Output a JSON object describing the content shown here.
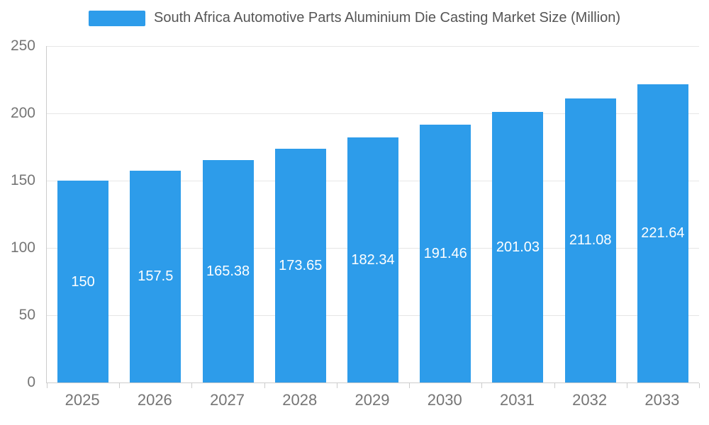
{
  "chart_data": {
    "type": "bar",
    "title": "South Africa Automotive Parts Aluminium Die Casting Market Size (Million)",
    "categories": [
      "2025",
      "2026",
      "2027",
      "2028",
      "2029",
      "2030",
      "2031",
      "2032",
      "2033"
    ],
    "values": [
      150,
      157.5,
      165.38,
      173.65,
      182.34,
      191.46,
      201.03,
      211.08,
      221.64
    ],
    "value_labels": [
      "150",
      "157.5",
      "165.38",
      "173.65",
      "182.34",
      "191.46",
      "201.03",
      "211.08",
      "221.64"
    ],
    "xlabel": "",
    "ylabel": "",
    "ylim": [
      0,
      250
    ],
    "yticks": [
      0,
      50,
      100,
      150,
      200,
      250
    ],
    "grid": true,
    "legend_position": "top",
    "colors": {
      "bar": "#2D9CEA",
      "bar_label": "#ffffff",
      "axis_text": "#757575",
      "title_text": "#555555",
      "gridline": "#e6e6e6",
      "axis_line": "#cccccc",
      "background": "#ffffff"
    }
  }
}
